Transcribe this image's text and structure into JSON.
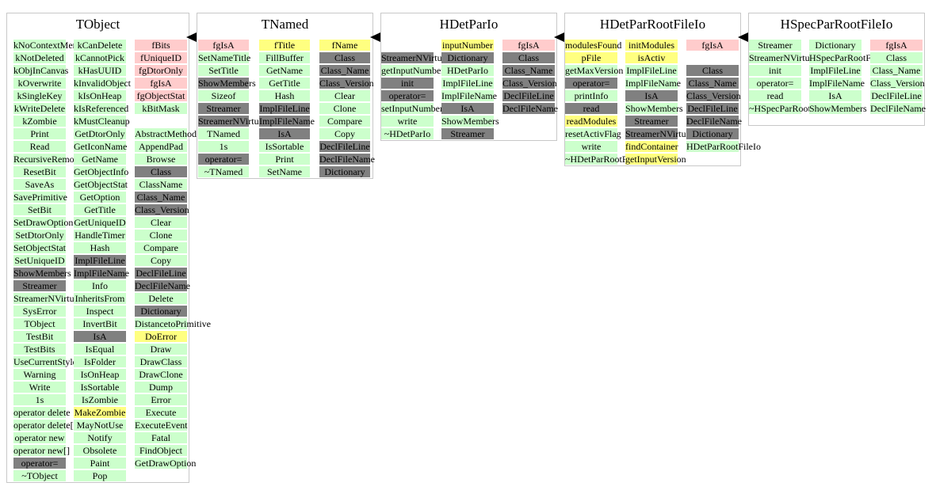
{
  "colors": {
    "method": "#ccffcc",
    "inherited": "#808080",
    "member": "#ffff80",
    "static_member": "#ffcccc",
    "border": "#c8c8c8"
  },
  "classes": [
    {
      "name": "TObject",
      "columns": [
        {
          "cells": [
            {
              "t": "kNoContextMenu",
              "k": "m"
            },
            {
              "t": "kNotDeleted",
              "k": "m"
            },
            {
              "t": "kObjInCanvas",
              "k": "m"
            },
            {
              "t": "kOverwrite",
              "k": "m"
            },
            {
              "t": "kSingleKey",
              "k": "m"
            },
            {
              "t": "kWriteDelete",
              "k": "m"
            },
            {
              "t": "kZombie",
              "k": "m"
            },
            {
              "t": "Print",
              "k": "m"
            },
            {
              "t": "Read",
              "k": "m"
            },
            {
              "t": "RecursiveRemove",
              "k": "m"
            },
            {
              "t": "ResetBit",
              "k": "m"
            },
            {
              "t": "SaveAs",
              "k": "m"
            },
            {
              "t": "SavePrimitive",
              "k": "m"
            },
            {
              "t": "SetBit",
              "k": "m"
            },
            {
              "t": "SetDrawOption",
              "k": "m"
            },
            {
              "t": "SetDtorOnly",
              "k": "m"
            },
            {
              "t": "SetObjectStat",
              "k": "m"
            },
            {
              "t": "SetUniqueID",
              "k": "m"
            },
            {
              "t": "ShowMembers",
              "k": "i"
            },
            {
              "t": "Streamer",
              "k": "i"
            },
            {
              "t": "StreamerNVirtual",
              "k": "m"
            },
            {
              "t": "SysError",
              "k": "m"
            },
            {
              "t": "TObject",
              "k": "m"
            },
            {
              "t": "TestBit",
              "k": "m"
            },
            {
              "t": "TestBits",
              "k": "m"
            },
            {
              "t": "UseCurrentStyle",
              "k": "m"
            },
            {
              "t": "Warning",
              "k": "m"
            },
            {
              "t": "Write",
              "k": "m"
            },
            {
              "t": "1s",
              "k": "m"
            },
            {
              "t": "operator delete",
              "k": "m"
            },
            {
              "t": "operator delete[]",
              "k": "m"
            },
            {
              "t": "operator new",
              "k": "m"
            },
            {
              "t": "operator new[]",
              "k": "m"
            },
            {
              "t": "operator=",
              "k": "i"
            },
            {
              "t": "~TObject",
              "k": "m"
            }
          ]
        },
        {
          "cells": [
            {
              "t": "kCanDelete",
              "k": "m"
            },
            {
              "t": "kCannotPick",
              "k": "m"
            },
            {
              "t": "kHasUUID",
              "k": "m"
            },
            {
              "t": "kInvalidObject",
              "k": "m"
            },
            {
              "t": "kIsOnHeap",
              "k": "m"
            },
            {
              "t": "kIsReferenced",
              "k": "m"
            },
            {
              "t": "kMustCleanup",
              "k": "m"
            },
            {
              "t": "GetDtorOnly",
              "k": "m"
            },
            {
              "t": "GetIconName",
              "k": "m"
            },
            {
              "t": "GetName",
              "k": "m"
            },
            {
              "t": "GetObjectInfo",
              "k": "m"
            },
            {
              "t": "GetObjectStat",
              "k": "m"
            },
            {
              "t": "GetOption",
              "k": "m"
            },
            {
              "t": "GetTitle",
              "k": "m"
            },
            {
              "t": "GetUniqueID",
              "k": "m"
            },
            {
              "t": "HandleTimer",
              "k": "m"
            },
            {
              "t": "Hash",
              "k": "m"
            },
            {
              "t": "ImplFileLine",
              "k": "i"
            },
            {
              "t": "ImplFileName",
              "k": "i"
            },
            {
              "t": "Info",
              "k": "m"
            },
            {
              "t": "InheritsFrom",
              "k": "m"
            },
            {
              "t": "Inspect",
              "k": "m"
            },
            {
              "t": "InvertBit",
              "k": "m"
            },
            {
              "t": "IsA",
              "k": "i"
            },
            {
              "t": "IsEqual",
              "k": "m"
            },
            {
              "t": "IsFolder",
              "k": "m"
            },
            {
              "t": "IsOnHeap",
              "k": "m"
            },
            {
              "t": "IsSortable",
              "k": "m"
            },
            {
              "t": "IsZombie",
              "k": "m"
            },
            {
              "t": "MakeZombie",
              "k": "f"
            },
            {
              "t": "MayNotUse",
              "k": "m"
            },
            {
              "t": "Notify",
              "k": "m"
            },
            {
              "t": "Obsolete",
              "k": "m"
            },
            {
              "t": "Paint",
              "k": "m"
            },
            {
              "t": "Pop",
              "k": "m"
            }
          ]
        },
        {
          "cells": [
            {
              "t": "fBits",
              "k": "s"
            },
            {
              "t": "fUniqueID",
              "k": "s"
            },
            {
              "t": "fgDtorOnly",
              "k": "s"
            },
            {
              "t": "fgIsA",
              "k": "s"
            },
            {
              "t": "fgObjectStat",
              "k": "s"
            },
            {
              "t": "kBitMask",
              "k": "m"
            },
            {
              "t": "",
              "k": "e"
            },
            {
              "t": "AbstractMethod",
              "k": "m"
            },
            {
              "t": "AppendPad",
              "k": "m"
            },
            {
              "t": "Browse",
              "k": "m"
            },
            {
              "t": "Class",
              "k": "i"
            },
            {
              "t": "ClassName",
              "k": "m"
            },
            {
              "t": "Class_Name",
              "k": "i"
            },
            {
              "t": "Class_Version",
              "k": "i"
            },
            {
              "t": "Clear",
              "k": "m"
            },
            {
              "t": "Clone",
              "k": "m"
            },
            {
              "t": "Compare",
              "k": "m"
            },
            {
              "t": "Copy",
              "k": "m"
            },
            {
              "t": "DeclFileLine",
              "k": "i"
            },
            {
              "t": "DeclFileName",
              "k": "i"
            },
            {
              "t": "Delete",
              "k": "m"
            },
            {
              "t": "Dictionary",
              "k": "i"
            },
            {
              "t": "DistancetoPrimitive",
              "k": "m"
            },
            {
              "t": "DoError",
              "k": "f"
            },
            {
              "t": "Draw",
              "k": "m"
            },
            {
              "t": "DrawClass",
              "k": "m"
            },
            {
              "t": "DrawClone",
              "k": "m"
            },
            {
              "t": "Dump",
              "k": "m"
            },
            {
              "t": "Error",
              "k": "m"
            },
            {
              "t": "Execute",
              "k": "m"
            },
            {
              "t": "ExecuteEvent",
              "k": "m"
            },
            {
              "t": "Fatal",
              "k": "m"
            },
            {
              "t": "FindObject",
              "k": "m"
            },
            {
              "t": "GetDrawOption",
              "k": "m"
            }
          ]
        }
      ]
    },
    {
      "name": "TNamed",
      "columns": [
        {
          "cells": [
            {
              "t": "fgIsA",
              "k": "s"
            },
            {
              "t": "SetNameTitle",
              "k": "m"
            },
            {
              "t": "SetTitle",
              "k": "m"
            },
            {
              "t": "ShowMembers",
              "k": "i"
            },
            {
              "t": "Sizeof",
              "k": "m"
            },
            {
              "t": "Streamer",
              "k": "i"
            },
            {
              "t": "StreamerNVirtual",
              "k": "i"
            },
            {
              "t": "TNamed",
              "k": "m"
            },
            {
              "t": "1s",
              "k": "m"
            },
            {
              "t": "operator=",
              "k": "i"
            },
            {
              "t": "~TNamed",
              "k": "m"
            }
          ]
        },
        {
          "cells": [
            {
              "t": "fTitle",
              "k": "f"
            },
            {
              "t": "FillBuffer",
              "k": "m"
            },
            {
              "t": "GetName",
              "k": "m"
            },
            {
              "t": "GetTitle",
              "k": "m"
            },
            {
              "t": "Hash",
              "k": "m"
            },
            {
              "t": "ImplFileLine",
              "k": "i"
            },
            {
              "t": "ImplFileName",
              "k": "i"
            },
            {
              "t": "IsA",
              "k": "i"
            },
            {
              "t": "IsSortable",
              "k": "m"
            },
            {
              "t": "Print",
              "k": "m"
            },
            {
              "t": "SetName",
              "k": "m"
            }
          ]
        },
        {
          "cells": [
            {
              "t": "fName",
              "k": "f"
            },
            {
              "t": "Class",
              "k": "i"
            },
            {
              "t": "Class_Name",
              "k": "i"
            },
            {
              "t": "Class_Version",
              "k": "i"
            },
            {
              "t": "Clear",
              "k": "m"
            },
            {
              "t": "Clone",
              "k": "m"
            },
            {
              "t": "Compare",
              "k": "m"
            },
            {
              "t": "Copy",
              "k": "m"
            },
            {
              "t": "DeclFileLine",
              "k": "i"
            },
            {
              "t": "DeclFileName",
              "k": "i"
            },
            {
              "t": "Dictionary",
              "k": "i"
            }
          ]
        }
      ]
    },
    {
      "name": "HDetParIo",
      "columns": [
        {
          "cells": [
            {
              "t": "",
              "k": "e"
            },
            {
              "t": "StreamerNVirtual",
              "k": "i"
            },
            {
              "t": "getInputNumber",
              "k": "m"
            },
            {
              "t": "init",
              "k": "i"
            },
            {
              "t": "operator=",
              "k": "i"
            },
            {
              "t": "setInputNumber",
              "k": "m"
            },
            {
              "t": "write",
              "k": "m"
            },
            {
              "t": "~HDetParIo",
              "k": "m"
            }
          ]
        },
        {
          "cells": [
            {
              "t": "inputNumber",
              "k": "f"
            },
            {
              "t": "Dictionary",
              "k": "i"
            },
            {
              "t": "HDetParIo",
              "k": "m"
            },
            {
              "t": "ImplFileLine",
              "k": "m"
            },
            {
              "t": "ImplFileName",
              "k": "m"
            },
            {
              "t": "IsA",
              "k": "i"
            },
            {
              "t": "ShowMembers",
              "k": "m"
            },
            {
              "t": "Streamer",
              "k": "i"
            }
          ]
        },
        {
          "cells": [
            {
              "t": "fgIsA",
              "k": "s"
            },
            {
              "t": "Class",
              "k": "i"
            },
            {
              "t": "Class_Name",
              "k": "i"
            },
            {
              "t": "Class_Version",
              "k": "i"
            },
            {
              "t": "DeclFileLine",
              "k": "i"
            },
            {
              "t": "DeclFileName",
              "k": "i"
            }
          ]
        }
      ]
    },
    {
      "name": "HDetParRootFileIo",
      "columns": [
        {
          "cells": [
            {
              "t": "modulesFound",
              "k": "f"
            },
            {
              "t": "pFile",
              "k": "f"
            },
            {
              "t": "getMaxVersion",
              "k": "m"
            },
            {
              "t": "operator=",
              "k": "i"
            },
            {
              "t": "printInfo",
              "k": "m"
            },
            {
              "t": "read",
              "k": "i"
            },
            {
              "t": "readModules",
              "k": "f"
            },
            {
              "t": "resetActivFlag",
              "k": "m"
            },
            {
              "t": "write",
              "k": "m"
            },
            {
              "t": "~HDetParRootFileIo",
              "k": "m"
            }
          ]
        },
        {
          "cells": [
            {
              "t": "initModules",
              "k": "f"
            },
            {
              "t": "isActiv",
              "k": "f"
            },
            {
              "t": "ImplFileLine",
              "k": "m"
            },
            {
              "t": "ImplFileName",
              "k": "m"
            },
            {
              "t": "IsA",
              "k": "i"
            },
            {
              "t": "ShowMembers",
              "k": "m"
            },
            {
              "t": "Streamer",
              "k": "i"
            },
            {
              "t": "StreamerNVirtual",
              "k": "i"
            },
            {
              "t": "findContainer",
              "k": "f"
            },
            {
              "t": "getInputVersion",
              "k": "f"
            }
          ]
        },
        {
          "cells": [
            {
              "t": "fgIsA",
              "k": "s"
            },
            {
              "t": "",
              "k": "e"
            },
            {
              "t": "Class",
              "k": "i"
            },
            {
              "t": "Class_Name",
              "k": "i"
            },
            {
              "t": "Class_Version",
              "k": "i"
            },
            {
              "t": "DeclFileLine",
              "k": "i"
            },
            {
              "t": "DeclFileName",
              "k": "i"
            },
            {
              "t": "Dictionary",
              "k": "i"
            },
            {
              "t": "HDetParRootFileIo",
              "k": "m"
            }
          ]
        }
      ]
    },
    {
      "name": "HSpecParRootFileIo",
      "columns": [
        {
          "cells": [
            {
              "t": "Streamer",
              "k": "m"
            },
            {
              "t": "StreamerNVirtual",
              "k": "m"
            },
            {
              "t": "init",
              "k": "m"
            },
            {
              "t": "operator=",
              "k": "m"
            },
            {
              "t": "read",
              "k": "m"
            },
            {
              "t": "~HSpecParRootFileIo",
              "k": "m"
            }
          ]
        },
        {
          "cells": [
            {
              "t": "Dictionary",
              "k": "m"
            },
            {
              "t": "HSpecParRootFileIo",
              "k": "m"
            },
            {
              "t": "ImplFileLine",
              "k": "m"
            },
            {
              "t": "ImplFileName",
              "k": "m"
            },
            {
              "t": "IsA",
              "k": "m"
            },
            {
              "t": "ShowMembers",
              "k": "m"
            }
          ]
        },
        {
          "cells": [
            {
              "t": "fgIsA",
              "k": "s"
            },
            {
              "t": "Class",
              "k": "m"
            },
            {
              "t": "Class_Name",
              "k": "m"
            },
            {
              "t": "Class_Version",
              "k": "m"
            },
            {
              "t": "DeclFileLine",
              "k": "m"
            },
            {
              "t": "DeclFileName",
              "k": "m"
            }
          ]
        }
      ]
    }
  ]
}
